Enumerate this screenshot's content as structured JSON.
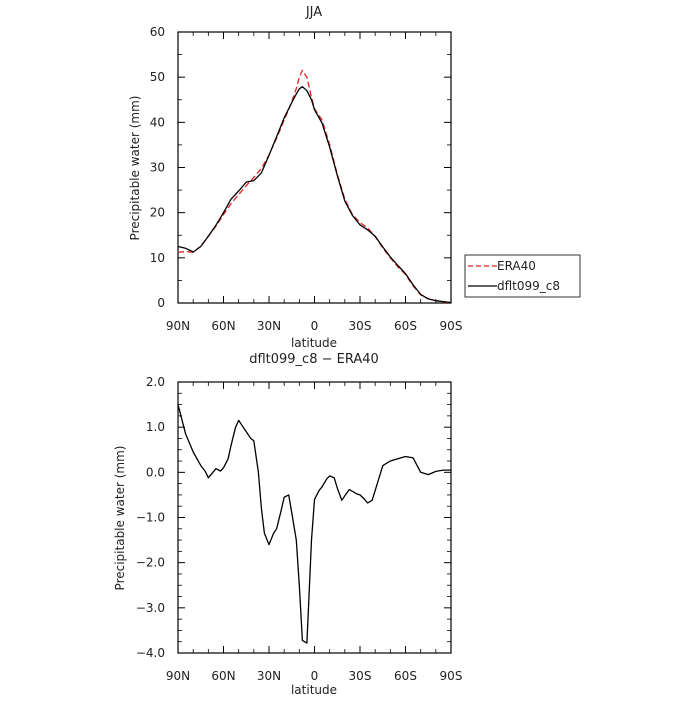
{
  "chart_data": [
    {
      "type": "line",
      "title": "JJA",
      "xlabel": "latitude",
      "ylabel": "Precipitable water (mm)",
      "xlim": [
        90,
        -90
      ],
      "ylim": [
        0,
        60
      ],
      "x_ticks": [
        {
          "value": 90,
          "label": "90N"
        },
        {
          "value": 60,
          "label": "60N"
        },
        {
          "value": 30,
          "label": "30N"
        },
        {
          "value": 0,
          "label": "0"
        },
        {
          "value": -30,
          "label": "30S"
        },
        {
          "value": -60,
          "label": "60S"
        },
        {
          "value": -90,
          "label": "90S"
        }
      ],
      "y_ticks": [
        {
          "value": 0,
          "label": "0"
        },
        {
          "value": 10,
          "label": "10"
        },
        {
          "value": 20,
          "label": "20"
        },
        {
          "value": 30,
          "label": "30"
        },
        {
          "value": 40,
          "label": "40"
        },
        {
          "value": 50,
          "label": "50"
        },
        {
          "value": 60,
          "label": "60"
        }
      ],
      "legend_position": "right",
      "series": [
        {
          "name": "ERA40",
          "color": "#dd2222",
          "dash": true,
          "x": [
            90,
            85,
            80,
            75,
            70,
            65,
            60,
            55,
            50,
            45,
            40,
            35,
            30,
            25,
            20,
            15,
            12,
            10,
            8,
            5,
            2,
            0,
            -5,
            -10,
            -15,
            -20,
            -25,
            -30,
            -35,
            -40,
            -45,
            -50,
            -55,
            -60,
            -65,
            -70,
            -75,
            -80,
            -85,
            -90
          ],
          "values": [
            11.2,
            11.4,
            11.2,
            12.6,
            14.8,
            17.0,
            19.6,
            22.0,
            24.0,
            26.0,
            27.8,
            29.8,
            32.8,
            36.5,
            40.5,
            44.6,
            47.5,
            50.0,
            51.5,
            50.0,
            45.5,
            43.0,
            40.5,
            35.0,
            28.5,
            23.0,
            19.6,
            17.8,
            16.6,
            14.7,
            12.2,
            10.0,
            8.0,
            6.3,
            3.8,
            1.8,
            0.9,
            0.5,
            0.2,
            0.1
          ]
        },
        {
          "name": "dflt099_c8",
          "color": "#000000",
          "dash": false,
          "x": [
            90,
            85,
            80,
            75,
            70,
            65,
            60,
            55,
            50,
            45,
            40,
            35,
            30,
            25,
            20,
            15,
            12,
            10,
            8,
            5,
            2,
            0,
            -5,
            -10,
            -15,
            -20,
            -25,
            -30,
            -35,
            -40,
            -45,
            -50,
            -55,
            -60,
            -65,
            -70,
            -75,
            -80,
            -85,
            -90
          ],
          "values": [
            12.5,
            12.1,
            11.3,
            12.5,
            14.8,
            17.2,
            20.0,
            23.0,
            24.8,
            26.8,
            27.1,
            28.8,
            32.7,
            36.8,
            41.0,
            44.4,
            46.3,
            47.4,
            47.9,
            47.0,
            45.0,
            42.8,
            39.8,
            34.5,
            28.2,
            22.6,
            19.4,
            17.3,
            16.2,
            14.8,
            12.4,
            10.2,
            8.3,
            6.5,
            4.0,
            1.9,
            0.9,
            0.5,
            0.3,
            0.1
          ]
        }
      ]
    },
    {
      "type": "line",
      "title": "dflt099_c8 − ERA40",
      "xlabel": "latitude",
      "ylabel": "Precipitable water (mm)",
      "xlim": [
        90,
        -90
      ],
      "ylim": [
        -4,
        2
      ],
      "x_ticks": [
        {
          "value": 90,
          "label": "90N"
        },
        {
          "value": 60,
          "label": "60N"
        },
        {
          "value": 30,
          "label": "30N"
        },
        {
          "value": 0,
          "label": "0"
        },
        {
          "value": -30,
          "label": "30S"
        },
        {
          "value": -60,
          "label": "60S"
        },
        {
          "value": -90,
          "label": "90S"
        }
      ],
      "y_ticks": [
        {
          "value": 2,
          "label": "2.0"
        },
        {
          "value": 1,
          "label": "1.0"
        },
        {
          "value": 0,
          "label": "0.0"
        },
        {
          "value": -1,
          "label": "−1.0"
        },
        {
          "value": -2,
          "label": "−2.0"
        },
        {
          "value": -3,
          "label": "−3.0"
        },
        {
          "value": -4,
          "label": "−4.0"
        }
      ],
      "series": [
        {
          "color": "#000000",
          "dash": false,
          "x": [
            90,
            85,
            80,
            75,
            72,
            70,
            67,
            65,
            62,
            60,
            57,
            55,
            52,
            50,
            47,
            45,
            42,
            40,
            37,
            35,
            33,
            30,
            27,
            25,
            22,
            20,
            17,
            15,
            12,
            10,
            8,
            5,
            2,
            0,
            -3,
            -5,
            -8,
            -10,
            -13,
            -15,
            -18,
            -20,
            -23,
            -25,
            -28,
            -30,
            -33,
            -35,
            -38,
            -40,
            -45,
            -50,
            -55,
            -60,
            -65,
            -70,
            -75,
            -80,
            -85,
            -90
          ],
          "values": [
            1.5,
            0.85,
            0.45,
            0.15,
            0.02,
            -0.12,
            0.0,
            0.08,
            0.03,
            0.1,
            0.3,
            0.6,
            1.0,
            1.15,
            1.0,
            0.9,
            0.75,
            0.7,
            0.0,
            -0.8,
            -1.35,
            -1.6,
            -1.35,
            -1.25,
            -0.85,
            -0.55,
            -0.5,
            -0.9,
            -1.5,
            -2.5,
            -3.72,
            -3.78,
            -1.5,
            -0.6,
            -0.4,
            -0.32,
            -0.15,
            -0.08,
            -0.12,
            -0.35,
            -0.62,
            -0.52,
            -0.38,
            -0.42,
            -0.48,
            -0.5,
            -0.6,
            -0.68,
            -0.62,
            -0.4,
            0.15,
            0.25,
            0.3,
            0.35,
            0.32,
            0.0,
            -0.05,
            0.02,
            0.05,
            0.05
          ]
        }
      ]
    }
  ]
}
